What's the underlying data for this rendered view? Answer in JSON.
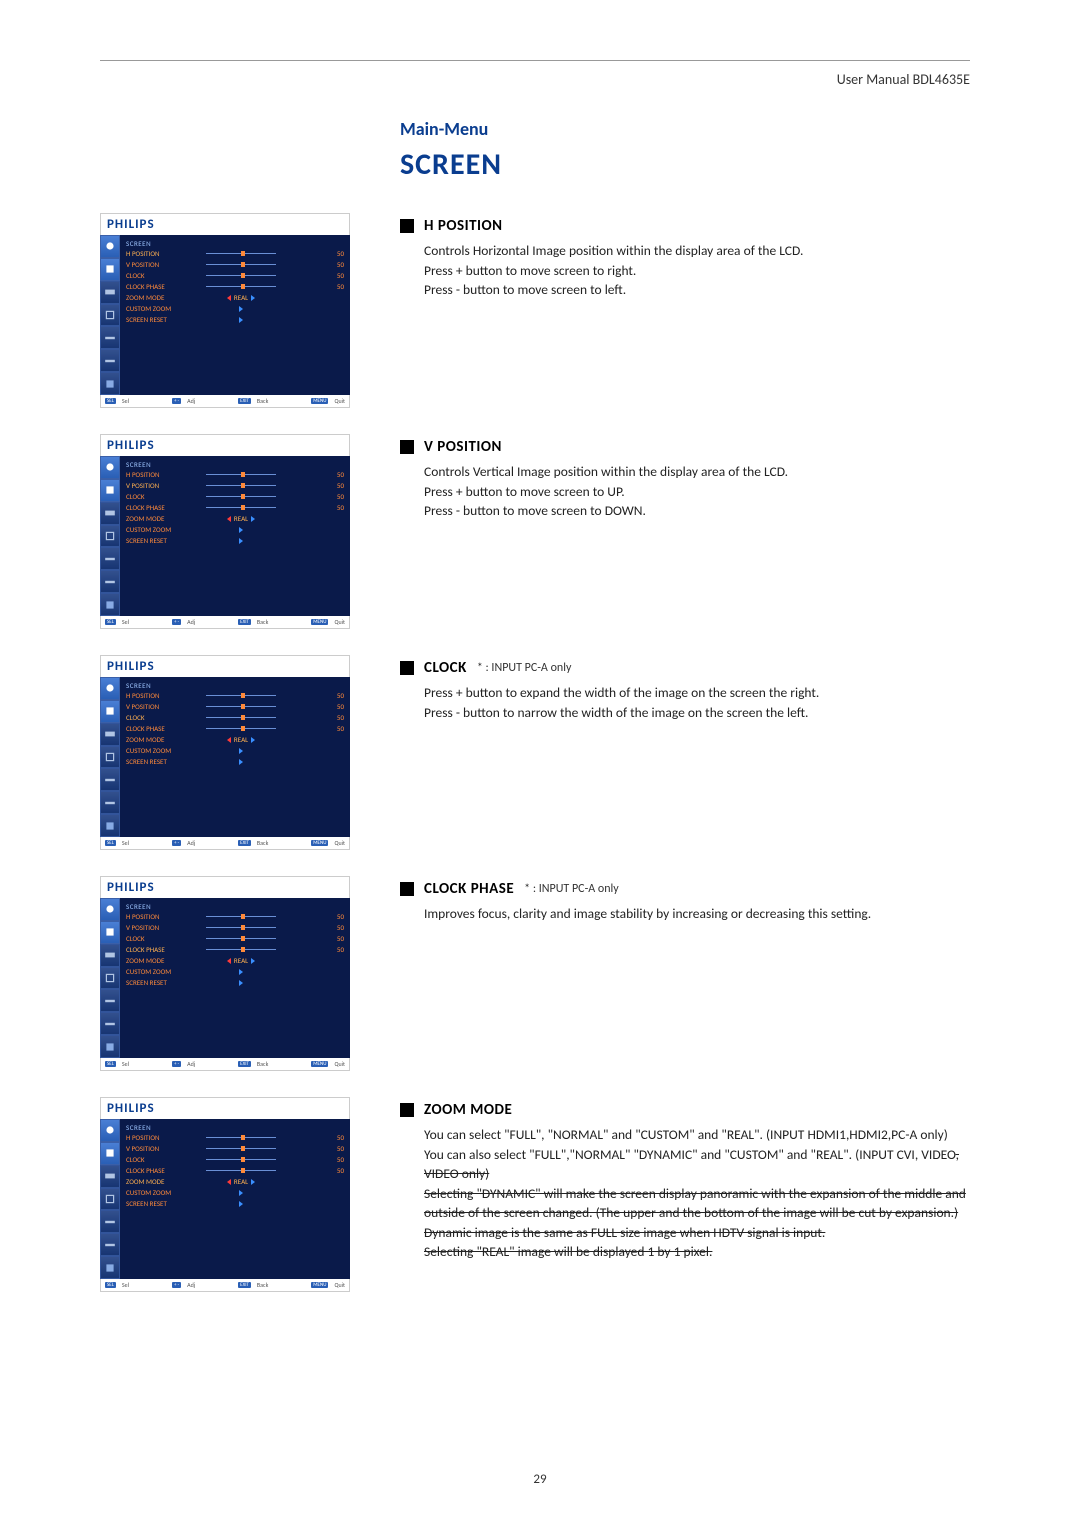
{
  "header": {
    "manual": "User Manual BDL4635E"
  },
  "titles": {
    "main_menu": "Main-Menu",
    "screen": "SCREEN"
  },
  "brand": "PHILIPS",
  "osd_common": {
    "header": "SCREEN",
    "footer": {
      "sel": "Sel",
      "adj": "Adj",
      "back": "Back",
      "quit": "Quit"
    }
  },
  "osd1": {
    "items": [
      {
        "label": "H POSITION",
        "slider": 0.5,
        "val": "50",
        "sel": true
      },
      {
        "label": "V POSITION",
        "slider": 0.5,
        "val": "50"
      },
      {
        "label": "CLOCK",
        "slider": 0.5,
        "val": "50"
      },
      {
        "label": "CLOCK PHASE",
        "slider": 0.5,
        "val": "50"
      },
      {
        "label": "ZOOM MODE",
        "real": "REAL"
      },
      {
        "label": "CUSTOM ZOOM",
        "arrow": true
      },
      {
        "label": "SCREEN RESET",
        "arrow": true
      }
    ]
  },
  "osd2": {
    "items": [
      {
        "label": "H POSITION",
        "slider": 0.5,
        "val": "50"
      },
      {
        "label": "V POSITION",
        "slider": 0.5,
        "val": "50",
        "sel": true
      },
      {
        "label": "CLOCK",
        "slider": 0.5,
        "val": "50"
      },
      {
        "label": "CLOCK PHASE",
        "slider": 0.5,
        "val": "50"
      },
      {
        "label": "ZOOM MODE",
        "real": "REAL"
      },
      {
        "label": "CUSTOM ZOOM",
        "arrow": true
      },
      {
        "label": "SCREEN RESET",
        "arrow": true
      }
    ]
  },
  "osd3": {
    "items": [
      {
        "label": "H POSITION",
        "slider": 0.5,
        "val": "50"
      },
      {
        "label": "V POSITION",
        "slider": 0.5,
        "val": "50"
      },
      {
        "label": "CLOCK",
        "slider": 0.5,
        "val": "50",
        "sel": true
      },
      {
        "label": "CLOCK PHASE",
        "slider": 0.5,
        "val": "50"
      },
      {
        "label": "ZOOM MODE",
        "real": "REAL"
      },
      {
        "label": "CUSTOM ZOOM",
        "arrow": true
      },
      {
        "label": "SCREEN RESET",
        "arrow": true
      }
    ]
  },
  "osd4": {
    "items": [
      {
        "label": "H POSITION",
        "slider": 0.5,
        "val": "50"
      },
      {
        "label": "V POSITION",
        "slider": 0.5,
        "val": "50"
      },
      {
        "label": "CLOCK",
        "slider": 0.5,
        "val": "50"
      },
      {
        "label": "CLOCK PHASE",
        "slider": 0.5,
        "val": "50",
        "sel": true
      },
      {
        "label": "ZOOM MODE",
        "real": "REAL"
      },
      {
        "label": "CUSTOM ZOOM",
        "arrow": true
      },
      {
        "label": "SCREEN RESET",
        "arrow": true
      }
    ]
  },
  "osd5": {
    "items": [
      {
        "label": "H POSITION",
        "slider": 0.5,
        "val": "50"
      },
      {
        "label": "V POSITION",
        "slider": 0.5,
        "val": "50"
      },
      {
        "label": "CLOCK",
        "slider": 0.5,
        "val": "50"
      },
      {
        "label": "CLOCK PHASE",
        "slider": 0.5,
        "val": "50"
      },
      {
        "label": "ZOOM MODE",
        "real": "REAL",
        "sel": true
      },
      {
        "label": "CUSTOM ZOOM",
        "arrow": true
      },
      {
        "label": "SCREEN RESET",
        "arrow": true
      }
    ]
  },
  "sections": {
    "hpos": {
      "title": "H POSITION",
      "body": "Controls Horizontal Image position within the display area of the LCD.\nPress + button to move screen to right.\nPress - button to move screen to left."
    },
    "vpos": {
      "title": "V POSITION",
      "body": "Controls Vertical Image position within the display area of the LCD.\nPress + button to move screen to UP.\nPress - button to move screen to DOWN."
    },
    "clock": {
      "title": "CLOCK",
      "note": "* : INPUT PC-A only",
      "body": "Press + button to expand the width of the image on the screen the right.\nPress - button to narrow the width of the image on the screen the left."
    },
    "clockphase": {
      "title": "CLOCK PHASE",
      "note": "* : INPUT PC-A only",
      "body": "Improves focus, clarity and image stability by increasing or decreasing this setting."
    },
    "zoom": {
      "title": "ZOOM MODE",
      "body": "You can select \"FULL\", \"NORMAL\" and \"CUSTOM\" and \"REAL\". (INPUT HDMI1,HDMI2,PC-A only)\nYou can also select \"FULL\",\"NORMAL\" \"DYNAMIC\" and \"CUSTOM\" and \"REAL\". (INPUT CVI, VIDEO<S>, VIDEO only)\nSelecting \"DYNAMIC\" will make the screen display panoramic with the expansion of the middle and outside of the screen changed. (The upper and the bottom of the image will be cut by expansion.)\nDynamic image is the same as FULL size image when HDTV signal is input.\nSelecting \"REAL\" image will be displayed 1 by 1 pixel."
    }
  },
  "page_number": "29",
  "colors": {
    "brand_blue": "#0a3d8f",
    "osd_bg": "#0a1a4a",
    "osd_orange": "#ff8a3a"
  }
}
